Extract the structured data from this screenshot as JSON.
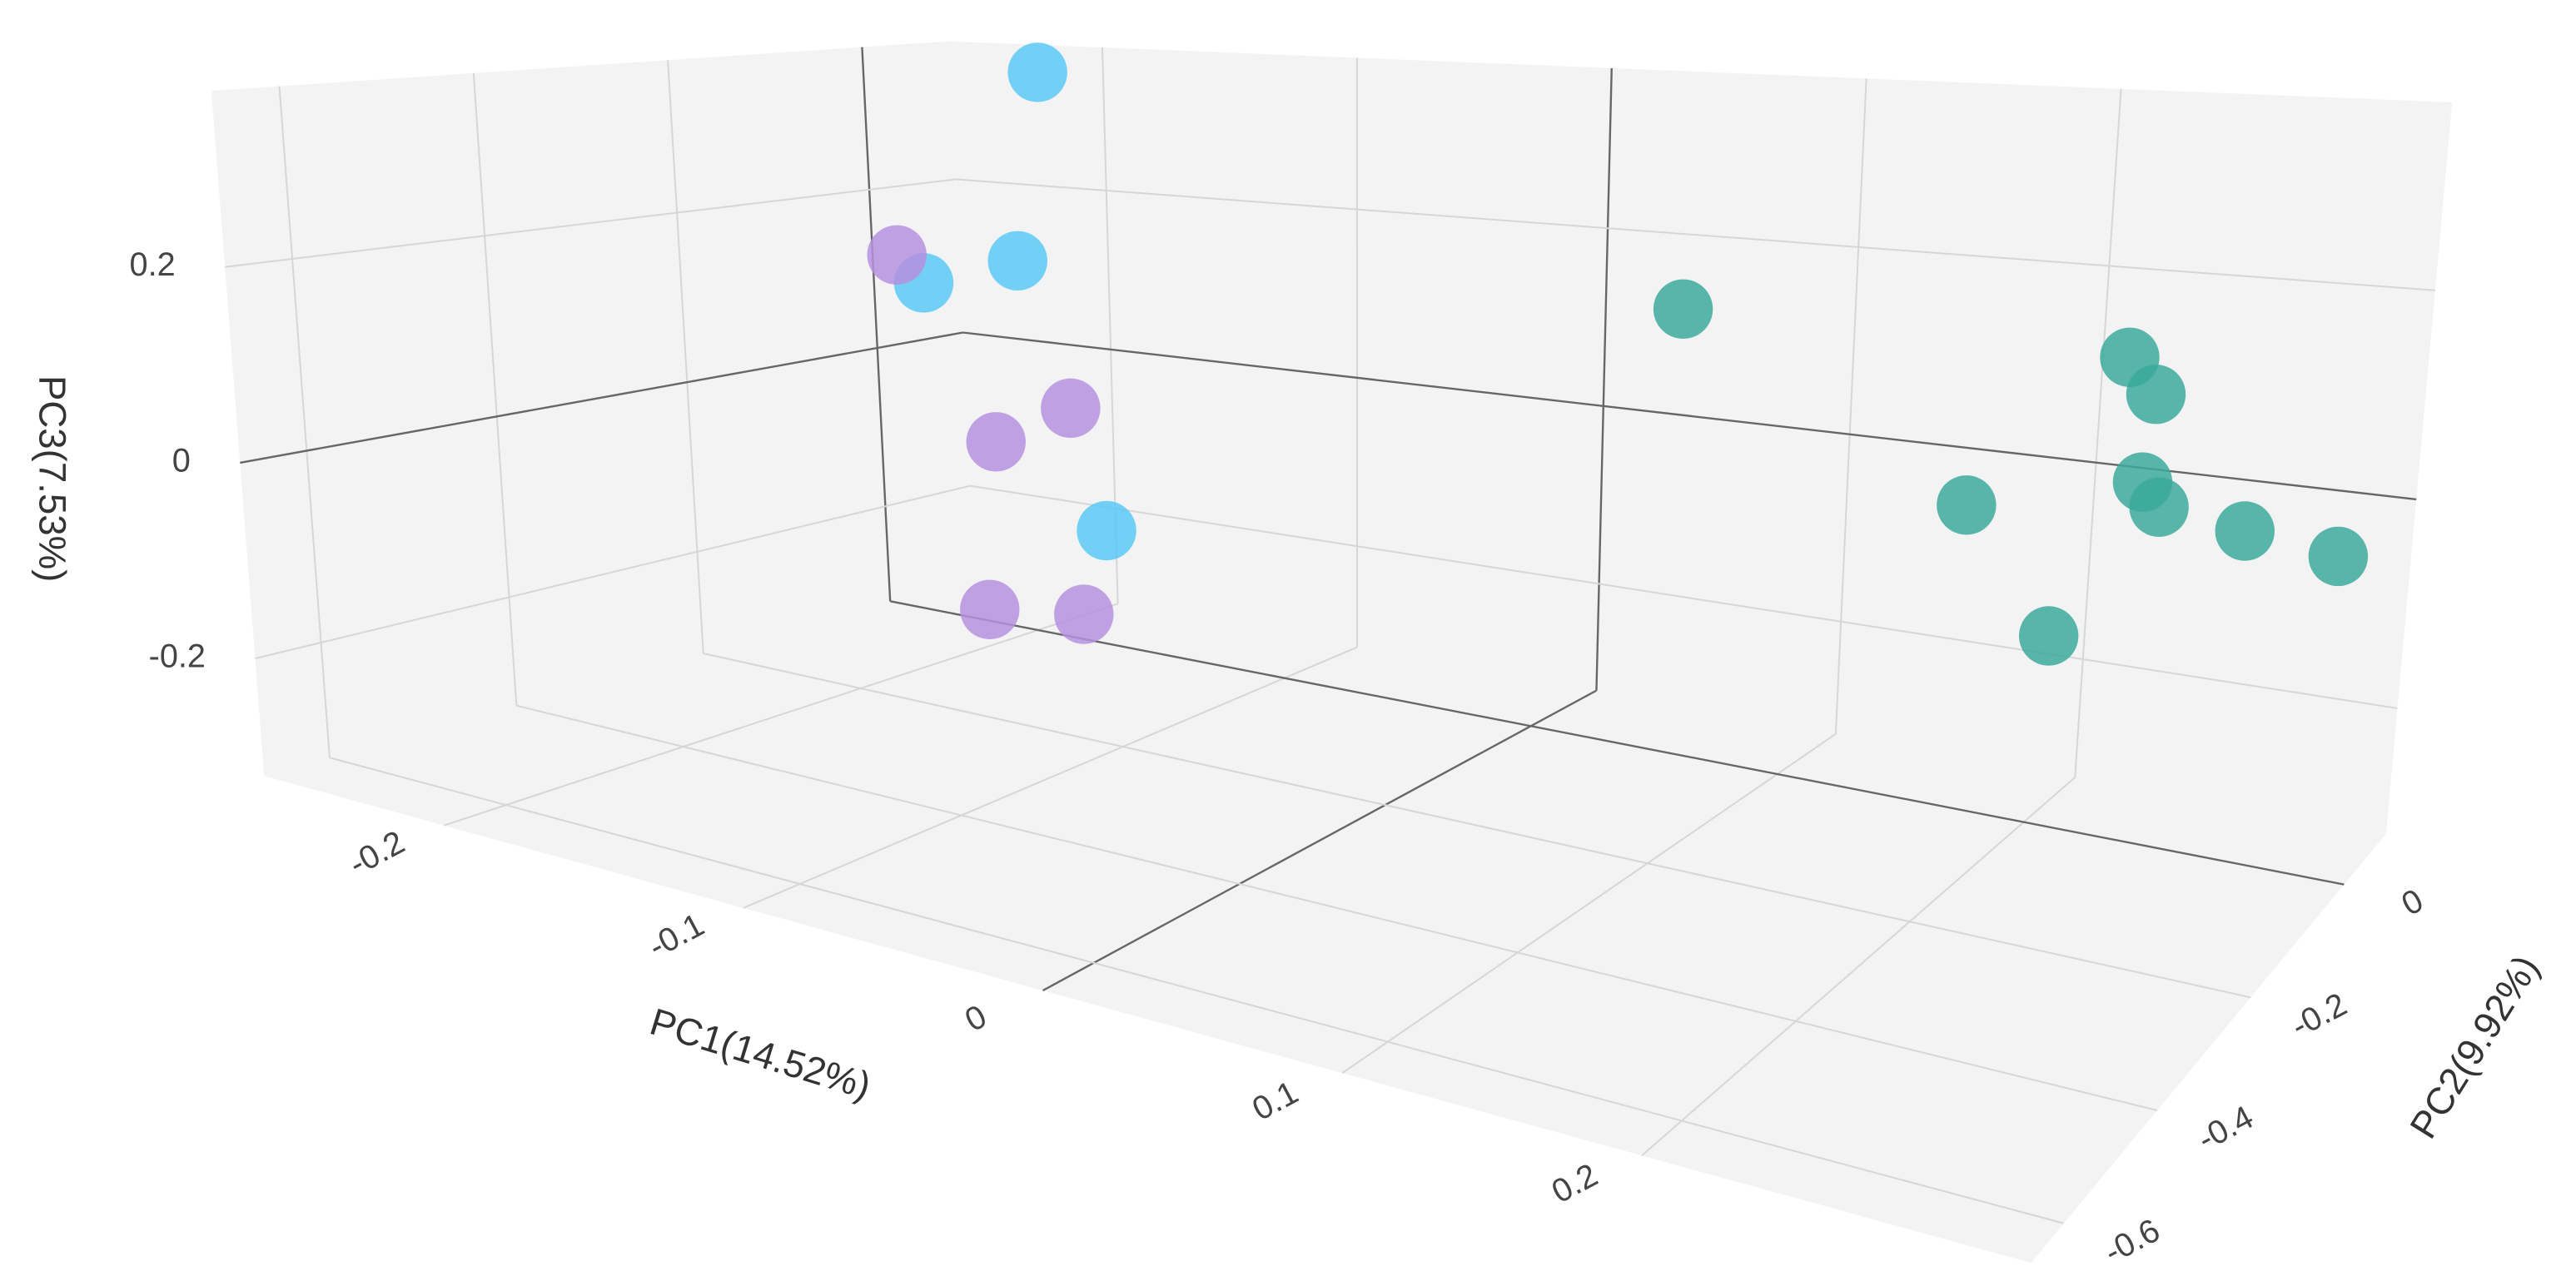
{
  "chart_data": {
    "type": "scatter3d",
    "xlabel": "PC1(14.52%)",
    "ylabel": "PC2(9.92%)",
    "zlabel": "PC3(7.53%)",
    "xlim": [
      -0.26,
      0.33
    ],
    "ylim": [
      -0.67,
      0.09
    ],
    "zlim": [
      -0.32,
      0.38
    ],
    "xticks": [
      -0.2,
      -0.1,
      0,
      0.1,
      0.2
    ],
    "yticks": [
      -0.6,
      -0.4,
      -0.2,
      0
    ],
    "zticks": [
      -0.2,
      0,
      0.2
    ],
    "grid": true,
    "series": [
      {
        "color": "#5bc8f5",
        "x": [
          -0.186,
          -0.196,
          -0.233,
          -0.164
        ],
        "y": [
          -0.02,
          -0.02,
          -0.02,
          -0.02
        ],
        "z": [
          0.366,
          0.136,
          0.096,
          -0.174
        ]
      },
      {
        "color": "#b590df",
        "x": [
          -0.243,
          -0.177,
          -0.207,
          -0.212,
          -0.174
        ],
        "y": [
          -0.02,
          -0.02,
          -0.02,
          -0.02,
          -0.02
        ],
        "z": [
          0.127,
          -0.034,
          -0.088,
          -0.295,
          -0.279
        ]
      },
      {
        "color": "#3ba99b",
        "x": [
          0.062,
          0.235,
          0.246,
          0.243,
          0.25,
          0.175,
          0.284,
          0.321,
          0.21
        ],
        "y": [
          -0.02,
          -0.02,
          -0.02,
          -0.02,
          -0.02,
          -0.02,
          -0.02,
          -0.02,
          -0.02
        ],
        "z": [
          0.161,
          0.159,
          0.126,
          0.04,
          0.018,
          -0.005,
          0.006,
          -0.006,
          -0.122
        ]
      }
    ]
  }
}
